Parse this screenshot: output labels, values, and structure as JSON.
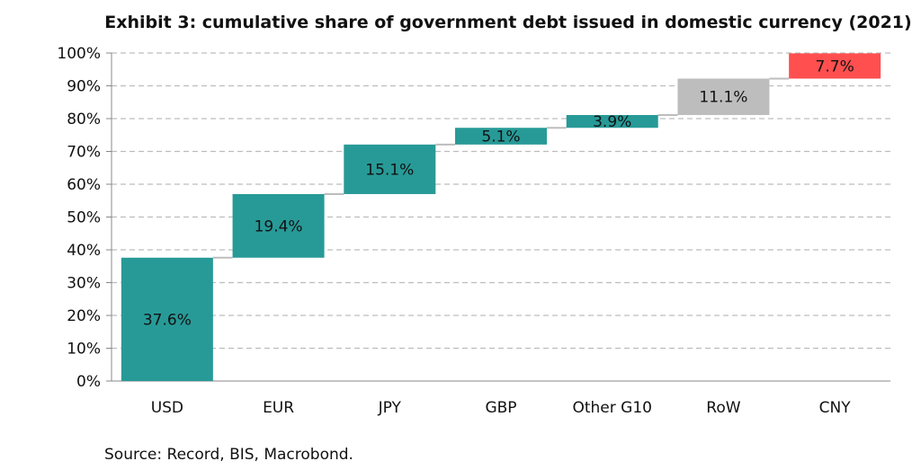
{
  "chart_data": {
    "type": "bar",
    "subtype": "waterfall",
    "title": "Exhibit 3: cumulative share of government debt issued in domestic currency (2021)",
    "xlabel": "",
    "ylabel": "",
    "ylim": [
      0,
      100
    ],
    "yticks": [
      "0%",
      "10%",
      "20%",
      "30%",
      "40%",
      "50%",
      "60%",
      "70%",
      "80%",
      "90%",
      "100%"
    ],
    "grid": true,
    "categories": [
      "USD",
      "EUR",
      "JPY",
      "GBP",
      "Other G10",
      "RoW",
      "CNY"
    ],
    "values": [
      37.6,
      19.4,
      15.1,
      5.1,
      3.9,
      11.1,
      7.7
    ],
    "labels": [
      "37.6%",
      "19.4%",
      "15.1%",
      "5.1%",
      "3.9%",
      "11.1%",
      "7.7%"
    ],
    "colors": [
      "#279a97",
      "#279a97",
      "#279a97",
      "#279a97",
      "#279a97",
      "#bdbdbd",
      "#ff4f4f"
    ],
    "connector_color": "#bdbdbd",
    "grid_color": "#bdbdbd"
  },
  "footer": {
    "source": "Source: Record, BIS, Macrobond."
  }
}
